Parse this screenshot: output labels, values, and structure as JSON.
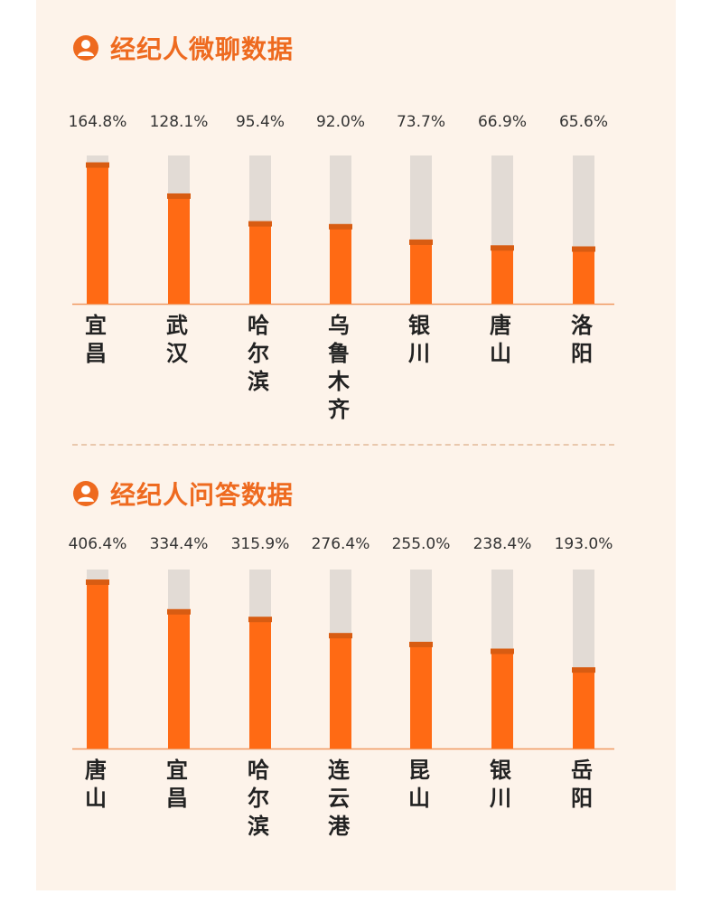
{
  "colors": {
    "accent": "#ee6a1f",
    "bar": "#ff6a14",
    "bar_cap": "#d85c12",
    "track": "#e2dbd5",
    "background": "#fdf3ea"
  },
  "icon": "person-avatar-icon",
  "sections": [
    {
      "title": "经纪人微聊数据"
    },
    {
      "title": "经纪人问答数据"
    }
  ],
  "chart_data": [
    {
      "type": "bar",
      "title": "经纪人微聊数据",
      "categories": [
        "宜昌",
        "武汉",
        "哈尔滨",
        "乌鲁木齐",
        "银川",
        "唐山",
        "洛阳"
      ],
      "values": [
        164.8,
        128.1,
        95.4,
        92.0,
        73.7,
        66.9,
        65.6
      ],
      "value_labels": [
        "164.8%",
        "128.1%",
        "95.4%",
        "92.0%",
        "73.7%",
        "66.9%",
        "65.6%"
      ],
      "unit": "%",
      "ylim": [
        0,
        175
      ],
      "grid": false,
      "legend": "none"
    },
    {
      "type": "bar",
      "title": "经纪人问答数据",
      "categories": [
        "唐山",
        "宜昌",
        "哈尔滨",
        "连云港",
        "昆山",
        "银川",
        "岳阳"
      ],
      "values": [
        406.4,
        334.4,
        315.9,
        276.4,
        255.0,
        238.4,
        193.0
      ],
      "value_labels": [
        "406.4%",
        "334.4%",
        "315.9%",
        "276.4%",
        "255.0%",
        "238.4%",
        "193.0%"
      ],
      "unit": "%",
      "ylim": [
        0,
        435
      ],
      "grid": false,
      "legend": "none"
    }
  ]
}
